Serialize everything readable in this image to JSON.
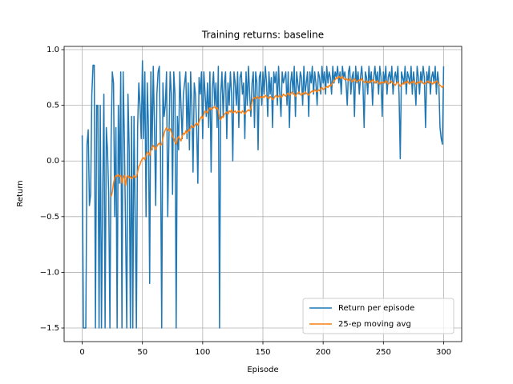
{
  "chart_data": {
    "type": "line",
    "title": "Training returns: baseline",
    "x_label": "Episode",
    "y_label": "Return",
    "x": [
      0,
      1,
      2,
      3,
      4,
      5,
      6,
      7,
      8,
      9,
      10,
      11,
      12,
      13,
      14,
      15,
      16,
      17,
      18,
      19,
      20,
      21,
      22,
      23,
      24,
      25,
      26,
      27,
      28,
      29,
      30,
      31,
      32,
      33,
      34,
      35,
      36,
      37,
      38,
      39,
      40,
      41,
      42,
      43,
      44,
      45,
      46,
      47,
      48,
      49,
      50,
      51,
      52,
      53,
      54,
      55,
      56,
      57,
      58,
      59,
      60,
      61,
      62,
      63,
      64,
      65,
      66,
      67,
      68,
      69,
      70,
      71,
      72,
      73,
      74,
      75,
      76,
      77,
      78,
      79,
      80,
      81,
      82,
      83,
      84,
      85,
      86,
      87,
      88,
      89,
      90,
      91,
      92,
      93,
      94,
      95,
      96,
      97,
      98,
      99,
      100,
      101,
      102,
      103,
      104,
      105,
      106,
      107,
      108,
      109,
      110,
      111,
      112,
      113,
      114,
      115,
      116,
      117,
      118,
      119,
      120,
      121,
      122,
      123,
      124,
      125,
      126,
      127,
      128,
      129,
      130,
      131,
      132,
      133,
      134,
      135,
      136,
      137,
      138,
      139,
      140,
      141,
      142,
      143,
      144,
      145,
      146,
      147,
      148,
      149,
      150,
      151,
      152,
      153,
      154,
      155,
      156,
      157,
      158,
      159,
      160,
      161,
      162,
      163,
      164,
      165,
      166,
      167,
      168,
      169,
      170,
      171,
      172,
      173,
      174,
      175,
      176,
      177,
      178,
      179,
      180,
      181,
      182,
      183,
      184,
      185,
      186,
      187,
      188,
      189,
      190,
      191,
      192,
      193,
      194,
      195,
      196,
      197,
      198,
      199,
      200,
      201,
      202,
      203,
      204,
      205,
      206,
      207,
      208,
      209,
      210,
      211,
      212,
      213,
      214,
      215,
      216,
      217,
      218,
      219,
      220,
      221,
      222,
      223,
      224,
      225,
      226,
      227,
      228,
      229,
      230,
      231,
      232,
      233,
      234,
      235,
      236,
      237,
      238,
      239,
      240,
      241,
      242,
      243,
      244,
      245,
      246,
      247,
      248,
      249,
      250,
      251,
      252,
      253,
      254,
      255,
      256,
      257,
      258,
      259,
      260,
      261,
      262,
      263,
      264,
      265,
      266,
      267,
      268,
      269,
      270,
      271,
      272,
      273,
      274,
      275,
      276,
      277,
      278,
      279,
      280,
      281,
      282,
      283,
      284,
      285,
      286,
      287,
      288,
      289,
      290,
      291,
      292,
      293,
      294,
      295,
      296,
      297,
      298,
      299,
      300
    ],
    "series": [
      {
        "name": "Return per episode",
        "color": "#1f77b4",
        "values": [
          0.23,
          -1.5,
          -1.5,
          -1.5,
          0.15,
          0.28,
          -0.4,
          -0.3,
          0.6,
          0.86,
          0.86,
          -1.5,
          0.5,
          0.5,
          -1.5,
          0.5,
          -1.5,
          -0.3,
          0.6,
          -1.5,
          0.3,
          0.1,
          -0.3,
          -1.5,
          0.2,
          0.8,
          0.7,
          -0.5,
          0.3,
          -1.5,
          0.5,
          -0.2,
          0.8,
          -1.5,
          0.8,
          0.2,
          -0.6,
          -1.5,
          0.6,
          0.1,
          -1.5,
          0.4,
          -1.5,
          0.4,
          -0.5,
          -1.5,
          0.3,
          0.7,
          0.5,
          0.2,
          0.9,
          0.2,
          0.8,
          -0.5,
          0.7,
          0.3,
          -1.1,
          0.8,
          0.1,
          0.85,
          0.3,
          -0.4,
          0.6,
          0.8,
          0.85,
          0.1,
          -1.5,
          0.7,
          0.4,
          0.5,
          0.8,
          -0.5,
          0.2,
          0.8,
          0.6,
          -0.3,
          0.8,
          0.6,
          -1.5,
          0.4,
          0.1,
          0.8,
          0.5,
          0.2,
          0.6,
          0.7,
          0.8,
          0.2,
          0.7,
          0.1,
          0.8,
          0.5,
          -0.1,
          0.7,
          0.6,
          0.3,
          -0.2,
          0.75,
          0.6,
          0.8,
          0.2,
          0.8,
          0.6,
          0.4,
          0.7,
          0.3,
          0.8,
          -0.1,
          0.65,
          0.8,
          0.5,
          0.7,
          0.3,
          0.85,
          -1.5,
          0.6,
          0.8,
          0.4,
          0.7,
          0.8,
          0.2,
          0.7,
          0.5,
          0.8,
          0.6,
          0.0,
          0.8,
          0.7,
          0.5,
          0.8,
          0.3,
          0.75,
          0.8,
          0.6,
          0.7,
          0.2,
          0.8,
          0.5,
          0.85,
          0.6,
          0.4,
          0.7,
          0.8,
          0.3,
          0.8,
          0.7,
          0.1,
          0.75,
          0.8,
          0.5,
          0.8,
          0.6,
          0.85,
          0.7,
          0.4,
          0.8,
          0.6,
          0.75,
          0.3,
          0.8,
          0.7,
          0.8,
          0.5,
          0.85,
          0.6,
          0.4,
          0.8,
          0.7,
          0.75,
          0.8,
          0.5,
          0.8,
          0.3,
          0.7,
          0.8,
          0.6,
          0.85,
          0.4,
          0.8,
          0.7,
          0.6,
          0.8,
          0.75,
          0.5,
          0.85,
          0.6,
          0.7,
          0.8,
          0.4,
          0.8,
          0.7,
          0.85,
          0.6,
          0.8,
          0.7,
          0.5,
          0.8,
          0.75,
          0.6,
          0.85,
          0.7,
          0.8,
          0.6,
          0.85,
          0.7,
          0.8,
          0.75,
          0.6,
          0.85,
          0.7,
          0.8,
          0.75,
          0.85,
          0.7,
          0.8,
          0.6,
          0.85,
          0.75,
          0.8,
          0.7,
          0.5,
          0.8,
          0.85,
          0.6,
          0.75,
          0.8,
          0.4,
          0.85,
          0.7,
          0.8,
          0.6,
          0.75,
          0.85,
          0.7,
          0.3,
          0.8,
          0.75,
          0.6,
          0.85,
          0.7,
          0.8,
          0.5,
          0.75,
          0.85,
          0.7,
          0.8,
          0.6,
          0.85,
          0.75,
          0.4,
          0.8,
          0.7,
          0.85,
          0.6,
          0.75,
          0.8,
          0.7,
          0.85,
          0.6,
          0.75,
          0.8,
          0.7,
          0.85,
          0.6,
          0.02,
          0.8,
          0.75,
          0.7,
          0.85,
          0.6,
          0.8,
          0.75,
          0.7,
          0.85,
          0.6,
          0.8,
          0.7,
          0.5,
          0.85,
          0.75,
          0.6,
          0.8,
          0.7,
          0.85,
          0.75,
          0.3,
          0.8,
          0.7,
          0.85,
          0.6,
          0.75,
          0.8,
          0.7,
          0.85,
          0.6,
          0.8,
          0.7,
          0.3,
          0.2,
          0.15,
          0.85
        ]
      },
      {
        "name": "25-ep moving avg",
        "color": "#ff7f0e",
        "values": [
          null,
          null,
          null,
          null,
          null,
          null,
          null,
          null,
          null,
          null,
          null,
          null,
          null,
          null,
          null,
          null,
          null,
          null,
          null,
          null,
          null,
          null,
          null,
          null,
          -0.32,
          -0.28,
          -0.2,
          -0.15,
          -0.13,
          -0.14,
          -0.12,
          -0.14,
          -0.13,
          -0.2,
          -0.15,
          -0.13,
          -0.22,
          -0.14,
          -0.13,
          -0.15,
          -0.14,
          -0.16,
          -0.15,
          -0.13,
          -0.15,
          -0.14,
          -0.1,
          -0.05,
          -0.03,
          0.0,
          0.02,
          0.03,
          0.01,
          0.05,
          0.08,
          0.07,
          0.05,
          0.1,
          0.12,
          0.14,
          0.12,
          0.1,
          0.13,
          0.15,
          0.16,
          0.14,
          0.15,
          0.2,
          0.25,
          0.28,
          0.3,
          0.28,
          0.27,
          0.29,
          0.26,
          0.22,
          0.2,
          0.17,
          0.15,
          0.2,
          0.22,
          0.2,
          0.18,
          0.22,
          0.25,
          0.24,
          0.27,
          0.25,
          0.28,
          0.27,
          0.3,
          0.32,
          0.3,
          0.31,
          0.33,
          0.34,
          0.32,
          0.35,
          0.38,
          0.4,
          0.38,
          0.42,
          0.45,
          0.44,
          0.43,
          0.46,
          0.48,
          0.46,
          0.47,
          0.48,
          0.49,
          0.47,
          0.48,
          0.45,
          0.38,
          0.37,
          0.4,
          0.39,
          0.42,
          0.43,
          0.44,
          0.42,
          0.45,
          0.44,
          0.46,
          0.43,
          0.44,
          0.45,
          0.43,
          0.44,
          0.45,
          0.44,
          0.43,
          0.45,
          0.44,
          0.42,
          0.44,
          0.45,
          0.46,
          0.45,
          0.47,
          0.53,
          0.56,
          0.57,
          0.56,
          0.58,
          0.57,
          0.56,
          0.58,
          0.57,
          0.58,
          0.57,
          0.59,
          0.58,
          0.57,
          0.56,
          0.58,
          0.57,
          0.55,
          0.56,
          0.58,
          0.59,
          0.57,
          0.58,
          0.59,
          0.57,
          0.58,
          0.6,
          0.59,
          0.58,
          0.6,
          0.61,
          0.59,
          0.6,
          0.62,
          0.61,
          0.6,
          0.58,
          0.6,
          0.61,
          0.62,
          0.6,
          0.59,
          0.61,
          0.6,
          0.62,
          0.61,
          0.6,
          0.59,
          0.61,
          0.62,
          0.63,
          0.62,
          0.64,
          0.63,
          0.62,
          0.64,
          0.63,
          0.65,
          0.66,
          0.64,
          0.65,
          0.66,
          0.67,
          0.66,
          0.68,
          0.67,
          0.69,
          0.7,
          0.72,
          0.73,
          0.75,
          0.74,
          0.76,
          0.75,
          0.74,
          0.76,
          0.74,
          0.73,
          0.74,
          0.73,
          0.72,
          0.74,
          0.73,
          0.71,
          0.72,
          0.74,
          0.72,
          0.71,
          0.72,
          0.73,
          0.72,
          0.74,
          0.72,
          0.71,
          0.7,
          0.72,
          0.71,
          0.7,
          0.72,
          0.71,
          0.73,
          0.72,
          0.7,
          0.71,
          0.72,
          0.7,
          0.69,
          0.71,
          0.7,
          0.71,
          0.7,
          0.72,
          0.71,
          0.69,
          0.7,
          0.72,
          0.71,
          0.7,
          0.69,
          0.68,
          0.7,
          0.71,
          0.69,
          0.67,
          0.68,
          0.7,
          0.69,
          0.71,
          0.7,
          0.72,
          0.7,
          0.69,
          0.71,
          0.7,
          0.72,
          0.71,
          0.69,
          0.7,
          0.71,
          0.7,
          0.72,
          0.71,
          0.7,
          0.69,
          0.7,
          0.71,
          0.72,
          0.7,
          0.71,
          0.7,
          0.69,
          0.71,
          0.7,
          0.72,
          0.71,
          0.69,
          0.68,
          0.67,
          0.66,
          0.68
        ]
      }
    ],
    "xlim": [
      -15,
      315
    ],
    "ylim": [
      -1.622,
      1.029
    ],
    "xticks": [
      0,
      50,
      100,
      150,
      200,
      250,
      300
    ],
    "yticks": [
      {
        "value": -1.5,
        "label": "−1.5"
      },
      {
        "value": -1.0,
        "label": "−1.0"
      },
      {
        "value": -0.5,
        "label": "−0.5"
      },
      {
        "value": 0.0,
        "label": "0.0"
      },
      {
        "value": 0.5,
        "label": "0.5"
      },
      {
        "value": 1.0,
        "label": "1.0"
      }
    ],
    "grid": true,
    "legend": "lower right"
  }
}
